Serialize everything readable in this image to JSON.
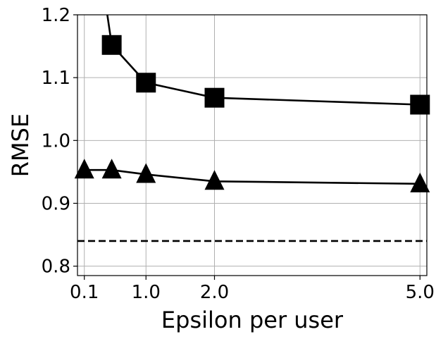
{
  "chart_data": {
    "type": "line",
    "xlabel": "Epsilon per user",
    "ylabel": "RMSE",
    "xlim": [
      0.0,
      5.1
    ],
    "ylim": [
      0.785,
      1.2
    ],
    "xticks": [
      {
        "value": 0.1,
        "label": "0.1"
      },
      {
        "value": 1.0,
        "label": "1.0"
      },
      {
        "value": 2.0,
        "label": "2.0"
      },
      {
        "value": 5.0,
        "label": "5.0"
      }
    ],
    "yticks": [
      {
        "value": 0.8,
        "label": "0.8"
      },
      {
        "value": 0.9,
        "label": "0.9"
      },
      {
        "value": 1.0,
        "label": "1.0"
      },
      {
        "value": 1.1,
        "label": "1.1"
      },
      {
        "value": 1.2,
        "label": "1.2"
      }
    ],
    "grid": true,
    "legend": "none",
    "series": [
      {
        "marker": "square",
        "color": "#000000",
        "x": [
          0.1,
          0.5,
          1.0,
          2.0,
          5.0
        ],
        "y": [
          1.45,
          1.152,
          1.092,
          1.068,
          1.057
        ]
      },
      {
        "marker": "triangle",
        "color": "#000000",
        "x": [
          0.1,
          0.5,
          1.0,
          2.0,
          5.0
        ],
        "y": [
          0.953,
          0.953,
          0.946,
          0.935,
          0.931
        ]
      }
    ],
    "reference_lines": [
      {
        "orientation": "horizontal",
        "y": 0.84,
        "style": "dashed",
        "color": "#000000"
      }
    ]
  }
}
